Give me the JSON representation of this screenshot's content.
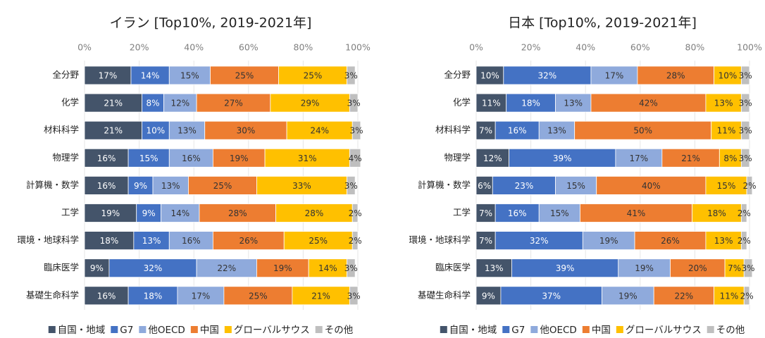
{
  "chart_data": [
    {
      "type": "bar",
      "orientation": "horizontal",
      "stacked": true,
      "title": "イラン [Top10%, 2019-2021年]",
      "categories": [
        "全分野",
        "化学",
        "材料科学",
        "物理学",
        "計算機・数学",
        "工学",
        "環境・地球科学",
        "臨床医学",
        "基礎生命科学"
      ],
      "xlim": [
        0,
        100
      ],
      "xticks": [
        {
          "value": 0,
          "label": "0%"
        },
        {
          "value": 20,
          "label": "20%"
        },
        {
          "value": 40,
          "label": "40%"
        },
        {
          "value": 60,
          "label": "60%"
        },
        {
          "value": 80,
          "label": "80%"
        },
        {
          "value": 100,
          "label": "100%"
        }
      ],
      "grid": true,
      "legend": "bottom",
      "series": [
        {
          "name": "自国・地域",
          "color": "#44546a",
          "values": [
            17,
            21,
            21,
            16,
            16,
            19,
            18,
            9,
            16
          ],
          "value_labels": [
            "17%",
            "21%",
            "21%",
            "16%",
            "16%",
            "19%",
            "18%",
            "9%",
            "16%"
          ]
        },
        {
          "name": "G7",
          "color": "#4472c4",
          "values": [
            14,
            8,
            10,
            15,
            9,
            9,
            13,
            32,
            18
          ],
          "value_labels": [
            "14%",
            "8%",
            "10%",
            "15%",
            "9%",
            "9%",
            "13%",
            "32%",
            "18%"
          ]
        },
        {
          "name": "他OECD",
          "color": "#8faadc",
          "values": [
            15,
            12,
            13,
            16,
            13,
            14,
            16,
            22,
            17
          ],
          "value_labels": [
            "15%",
            "12%",
            "13%",
            "16%",
            "13%",
            "14%",
            "16%",
            "22%",
            "17%"
          ]
        },
        {
          "name": "中国",
          "color": "#ed7d31",
          "values": [
            25,
            27,
            30,
            19,
            25,
            28,
            26,
            19,
            25
          ],
          "value_labels": [
            "25%",
            "27%",
            "30%",
            "19%",
            "25%",
            "28%",
            "26%",
            "19%",
            "25%"
          ]
        },
        {
          "name": "グローバルサウス",
          "color": "#ffc000",
          "values": [
            25,
            29,
            24,
            31,
            33,
            28,
            25,
            14,
            21
          ],
          "value_labels": [
            "25%",
            "29%",
            "24%",
            "31%",
            "33%",
            "28%",
            "25%",
            "14%",
            "21%"
          ]
        },
        {
          "name": "その他",
          "color": "#bfbfbf",
          "values": [
            3,
            3,
            3,
            4,
            3,
            2,
            2,
            3,
            3
          ],
          "value_labels": [
            "3%",
            "3%",
            "3%",
            "4%",
            "3%",
            "2%",
            "2%",
            "3%",
            "3%"
          ]
        }
      ]
    },
    {
      "type": "bar",
      "orientation": "horizontal",
      "stacked": true,
      "title": "日本 [Top10%, 2019-2021年]",
      "categories": [
        "全分野",
        "化学",
        "材料科学",
        "物理学",
        "計算機・数学",
        "工学",
        "環境・地球科学",
        "臨床医学",
        "基礎生命科学"
      ],
      "xlim": [
        0,
        100
      ],
      "xticks": [
        {
          "value": 0,
          "label": "0%"
        },
        {
          "value": 20,
          "label": "20%"
        },
        {
          "value": 40,
          "label": "40%"
        },
        {
          "value": 60,
          "label": "60%"
        },
        {
          "value": 80,
          "label": "80%"
        },
        {
          "value": 100,
          "label": "100%"
        }
      ],
      "grid": true,
      "legend": "bottom",
      "series": [
        {
          "name": "自国・地域",
          "color": "#44546a",
          "values": [
            10,
            11,
            7,
            12,
            6,
            7,
            7,
            13,
            9
          ],
          "value_labels": [
            "10%",
            "11%",
            "7%",
            "12%",
            "6%",
            "7%",
            "7%",
            "13%",
            "9%"
          ]
        },
        {
          "name": "G7",
          "color": "#4472c4",
          "values": [
            32,
            18,
            16,
            39,
            23,
            16,
            32,
            39,
            37
          ],
          "value_labels": [
            "32%",
            "18%",
            "16%",
            "39%",
            "23%",
            "16%",
            "32%",
            "39%",
            "37%"
          ]
        },
        {
          "name": "他OECD",
          "color": "#8faadc",
          "values": [
            17,
            13,
            13,
            17,
            15,
            15,
            19,
            19,
            19
          ],
          "value_labels": [
            "17%",
            "13%",
            "13%",
            "17%",
            "15%",
            "15%",
            "19%",
            "19%",
            "19%"
          ]
        },
        {
          "name": "中国",
          "color": "#ed7d31",
          "values": [
            28,
            42,
            50,
            21,
            40,
            41,
            26,
            20,
            22
          ],
          "value_labels": [
            "28%",
            "42%",
            "50%",
            "21%",
            "40%",
            "41%",
            "26%",
            "20%",
            "22%"
          ]
        },
        {
          "name": "グローバルサウス",
          "color": "#ffc000",
          "values": [
            10,
            13,
            11,
            8,
            15,
            18,
            13,
            7,
            11
          ],
          "value_labels": [
            "10%",
            "13%",
            "11%",
            "8%",
            "15%",
            "18%",
            "13%",
            "7%",
            "11%"
          ]
        },
        {
          "name": "その他",
          "color": "#bfbfbf",
          "values": [
            3,
            3,
            3,
            3,
            2,
            2,
            2,
            3,
            2
          ],
          "value_labels": [
            "3%",
            "3%",
            "3%",
            "3%",
            "2%",
            "2%",
            "2%",
            "3%",
            "2%"
          ]
        }
      ]
    }
  ]
}
